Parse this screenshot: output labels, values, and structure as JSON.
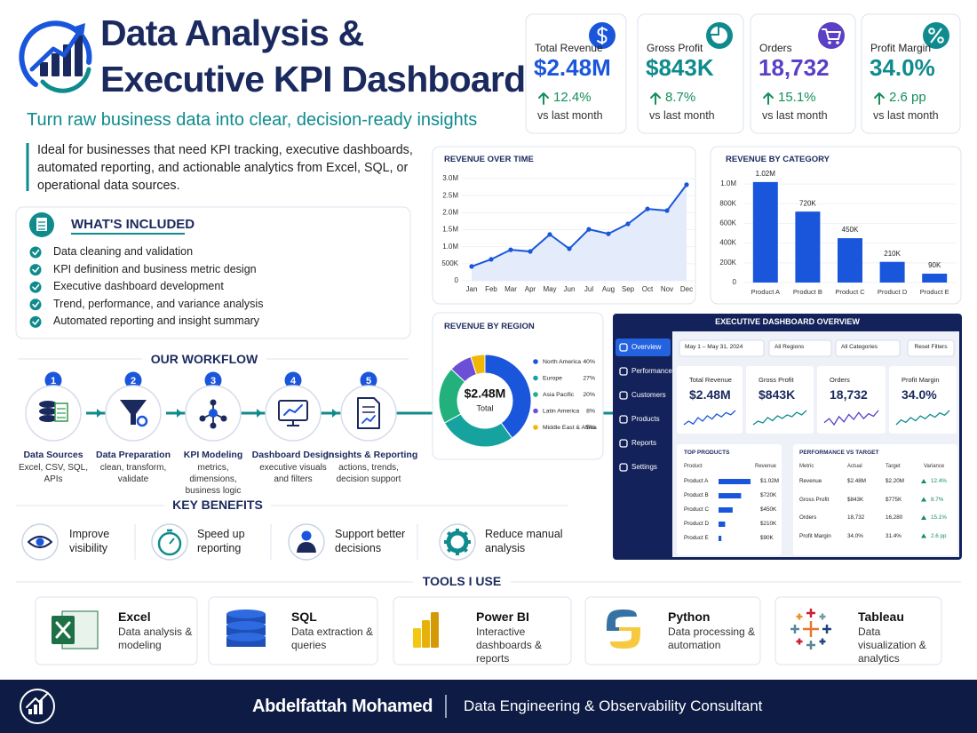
{
  "header": {
    "title_line1": "Data Analysis &",
    "title_line2": "Executive KPI Dashboard",
    "tagline": "Turn raw business data into clear, decision-ready insights",
    "description": "Ideal for businesses that need KPI tracking, executive dashboards, automated reporting, and actionable analytics from Excel, SQL, or operational data sources."
  },
  "kpis": [
    {
      "label": "Total Revenue",
      "value": "$2.48M",
      "change": "12.4%",
      "note": "vs last month",
      "color": "#1a56db",
      "trend": [
        3,
        4,
        3.2,
        5,
        4,
        5.5,
        4.6,
        6,
        5.2,
        6.4,
        5.8,
        7
      ]
    },
    {
      "label": "Gross Profit",
      "value": "$843K",
      "change": "8.7%",
      "note": "vs last month",
      "color": "#0f8b8d",
      "trend": [
        3,
        3.8,
        3.4,
        4.6,
        3.9,
        5,
        4.4,
        5.2,
        4.8,
        5.8,
        5.2,
        6.2
      ]
    },
    {
      "label": "Orders",
      "value": "18,732",
      "change": "15.1%",
      "note": "vs last month",
      "color": "#5b3fc4",
      "trend": [
        4,
        5,
        3.5,
        5.5,
        4.2,
        6,
        4.8,
        6.5,
        5,
        6.2,
        5.6,
        7
      ]
    },
    {
      "label": "Profit Margin",
      "value": "34.0%",
      "change": "2.6 pp",
      "note": "vs last month",
      "color": "#0f8b8d",
      "trend": [
        3,
        4.2,
        3.6,
        4.8,
        4,
        5.2,
        4.5,
        5.6,
        4.9,
        6,
        5.4,
        6.6
      ]
    }
  ],
  "included": {
    "title": "WHAT'S INCLUDED",
    "items": [
      "Data cleaning and validation",
      "KPI definition and business metric design",
      "Executive dashboard development",
      "Trend, performance, and variance analysis",
      "Automated reporting and insight summary"
    ]
  },
  "workflow": {
    "title": "OUR WORKFLOW",
    "steps": [
      {
        "number": 1,
        "title": "Data Sources",
        "description": "Excel, CSV, SQL, APIs"
      },
      {
        "number": 2,
        "title": "Data Preparation",
        "description": "clean, transform, validate"
      },
      {
        "number": 3,
        "title": "KPI Modeling",
        "description": "metrics, dimensions, business logic"
      },
      {
        "number": 4,
        "title": "Dashboard Design",
        "description": "executive visuals and filters"
      },
      {
        "number": 5,
        "title": "Insights & Reporting",
        "description": "actions, trends, decision support"
      }
    ]
  },
  "benefits": {
    "title": "KEY BENEFITS",
    "items": [
      "Improve visibility",
      "Speed up reporting",
      "Support better decisions",
      "Reduce manual analysis"
    ]
  },
  "tools": {
    "title": "TOOLS I USE",
    "items": [
      {
        "name": "Excel",
        "description": "Data analysis & modeling"
      },
      {
        "name": "SQL",
        "description": "Data extraction & queries"
      },
      {
        "name": "Power BI",
        "description": "Interactive dashboards & reports"
      },
      {
        "name": "Python",
        "description": "Data processing & automation"
      },
      {
        "name": "Tableau",
        "description": "Data visualization & analytics"
      }
    ]
  },
  "footer": {
    "name": "Abdelfattah Mohamed",
    "role": "Data Engineering & Observability Consultant"
  },
  "revenue_over_time": {
    "type": "line",
    "title": "REVENUE OVER TIME",
    "color": "#1a56db",
    "categories": [
      "Jan",
      "Feb",
      "Mar",
      "Apr",
      "May",
      "Jun",
      "Jul",
      "Aug",
      "Sep",
      "Oct",
      "Nov",
      "Dec"
    ],
    "values": [
      420000,
      630000,
      910000,
      860000,
      1360000,
      940000,
      1510000,
      1380000,
      1670000,
      2110000,
      2060000,
      2820000
    ],
    "ylim": [
      0,
      3000000
    ],
    "yticks": [
      0,
      {
        "value": 500000,
        "label": "500K"
      },
      {
        "value": 1000000,
        "label": "1.0M"
      },
      {
        "value": 1500000,
        "label": "1.5M"
      },
      {
        "value": 2000000,
        "label": "2.0M"
      },
      {
        "value": 2500000,
        "label": "2.5M"
      },
      {
        "value": 3000000,
        "label": "3.0M"
      }
    ],
    "grid": true
  },
  "revenue_by_category": {
    "type": "bar",
    "title": "REVENUE BY CATEGORY",
    "color": "#1a56db",
    "categories": [
      "Product A",
      "Product B",
      "Product C",
      "Product D",
      "Product E"
    ],
    "values": [
      1020000,
      720000,
      450000,
      210000,
      90000
    ],
    "value_labels": [
      "1.02M",
      "720K",
      "450K",
      "210K",
      "90K"
    ],
    "ylim": [
      0,
      1100000
    ],
    "yticks": [
      0,
      {
        "value": 200000,
        "label": "200K"
      },
      {
        "value": 400000,
        "label": "400K"
      },
      {
        "value": 600000,
        "label": "600K"
      },
      {
        "value": 800000,
        "label": "800K"
      },
      {
        "value": 1000000,
        "label": "1.0M"
      }
    ],
    "grid": true
  },
  "revenue_by_region": {
    "type": "pie",
    "title": "REVENUE BY REGION",
    "center_value": "$2.48M",
    "center_label": "Total",
    "categories": [
      "North America",
      "Europe",
      "Asia Pacific",
      "Latin America",
      "Middle East & Africa"
    ],
    "values": [
      40,
      27,
      20,
      8,
      5
    ],
    "value_labels": [
      "40%",
      "27%",
      "20%",
      "8%",
      "5%"
    ],
    "colors": [
      "#1a56db",
      "#16a3a0",
      "#22b07d",
      "#6b4fd6",
      "#f2b705"
    ]
  },
  "executive_dashboard": {
    "title": "EXECUTIVE DASHBOARD OVERVIEW",
    "nav": [
      "Overview",
      "Performance",
      "Customers",
      "Products",
      "Reports",
      "Settings"
    ],
    "filters": {
      "date": "May 1 – May 31, 2024",
      "region": "All Regions",
      "category": "All Categories",
      "reset": "Reset Filters"
    },
    "top_products": {
      "title": "TOP PRODUCTS",
      "headers": [
        "Product",
        "Revenue"
      ],
      "rows": [
        {
          "name": "Product A",
          "value": 1020000,
          "label": "$1.02M"
        },
        {
          "name": "Product B",
          "value": 720000,
          "label": "$720K"
        },
        {
          "name": "Product C",
          "value": 450000,
          "label": "$450K"
        },
        {
          "name": "Product D",
          "value": 210000,
          "label": "$210K"
        },
        {
          "name": "Product E",
          "value": 90000,
          "label": "$90K"
        }
      ]
    },
    "performance": {
      "title": "PERFORMANCE VS TARGET",
      "headers": [
        "Metric",
        "Actual",
        "Target",
        "Variance"
      ],
      "rows": [
        [
          "Revenue",
          "$2.48M",
          "$2.20M",
          "12.4%"
        ],
        [
          "Gross Profit",
          "$843K",
          "$775K",
          "8.7%"
        ],
        [
          "Orders",
          "18,732",
          "16,280",
          "15.1%"
        ],
        [
          "Profit Margin",
          "34.0%",
          "31.4%",
          "2.6 pp"
        ]
      ]
    }
  }
}
